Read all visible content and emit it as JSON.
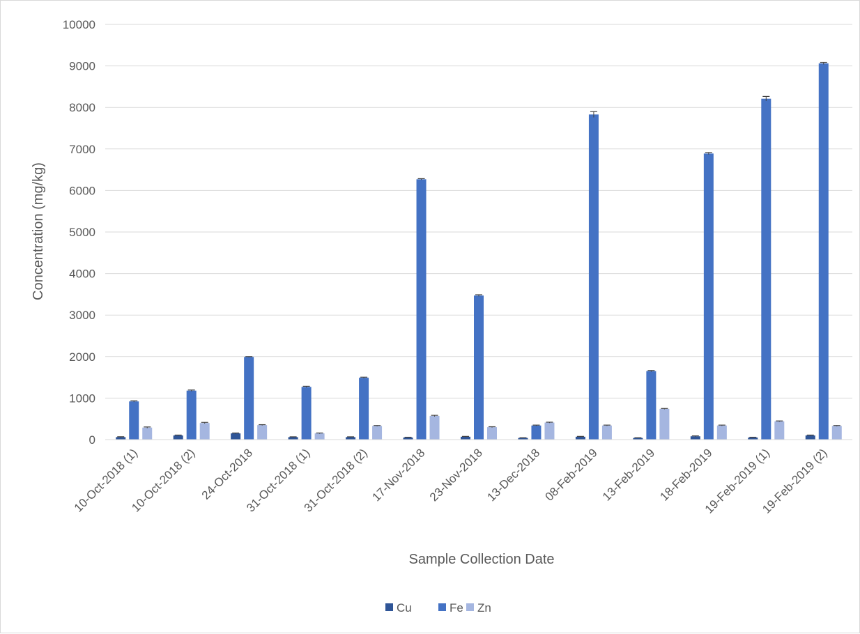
{
  "chart_data": {
    "type": "bar",
    "xlabel": "Sample Collection Date",
    "ylabel": "Concentration (mg/kg)",
    "ylim": [
      0,
      10000
    ],
    "yticks": [
      0,
      1000,
      2000,
      3000,
      4000,
      5000,
      6000,
      7000,
      8000,
      9000,
      10000
    ],
    "grid": true,
    "legend_position": "bottom",
    "categories": [
      "10-Oct-2018 (1)",
      "10-Oct-2018 (2)",
      "24-Oct-2018",
      "31-Oct-2018 (1)",
      "31-Oct-2018 (2)",
      "17-Nov-2018",
      "23-Nov-2018",
      "13-Dec-2018",
      "08-Feb-2019",
      "13-Feb-2019",
      "18-Feb-2019",
      "19-Feb-2019 (1)",
      "19-Feb-2019 (2)"
    ],
    "series": [
      {
        "name": "Cu",
        "color": "#2f5597",
        "values": [
          60,
          100,
          150,
          60,
          60,
          50,
          70,
          40,
          70,
          40,
          80,
          50,
          100
        ],
        "errors": [
          10,
          10,
          10,
          8,
          8,
          8,
          8,
          6,
          8,
          6,
          10,
          8,
          10
        ]
      },
      {
        "name": "Fe",
        "color": "#4472c4",
        "values": [
          920,
          1180,
          1990,
          1270,
          1490,
          6270,
          3470,
          340,
          7830,
          1650,
          6890,
          8210,
          9060
        ],
        "errors": [
          15,
          15,
          10,
          15,
          15,
          15,
          20,
          10,
          70,
          15,
          25,
          55,
          25
        ]
      },
      {
        "name": "Zn",
        "color": "#a5b6e0",
        "values": [
          290,
          400,
          350,
          150,
          330,
          570,
          300,
          410,
          340,
          740,
          340,
          440,
          330
        ],
        "errors": [
          15,
          15,
          10,
          10,
          10,
          15,
          10,
          10,
          10,
          10,
          10,
          10,
          10
        ]
      }
    ]
  }
}
